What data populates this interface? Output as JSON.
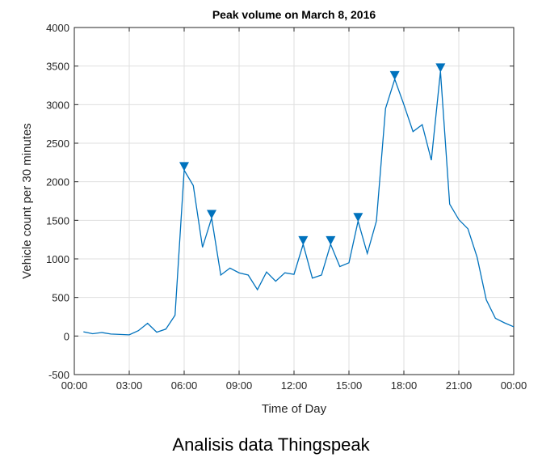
{
  "caption": "Analisis data Thingspeak",
  "chart_data": {
    "type": "line",
    "title": "Peak volume on March 8, 2016",
    "xlabel": "Time of Day",
    "ylabel": "Vehicle count per 30 minutes",
    "xlim": [
      "00:00",
      "24:00"
    ],
    "ylim": [
      -500,
      4000
    ],
    "x_ticks": [
      "00:00",
      "03:00",
      "06:00",
      "09:00",
      "12:00",
      "15:00",
      "18:00",
      "21:00",
      "00:00"
    ],
    "y_ticks": [
      -500,
      0,
      500,
      1000,
      1500,
      2000,
      2500,
      3000,
      3500,
      4000
    ],
    "grid": true,
    "colors": {
      "line": "#0072bd",
      "marker": "#0072bd",
      "grid": "#dfdfdf",
      "axis": "#262626"
    },
    "series": [
      {
        "x": [
          "00:30",
          "01:00",
          "01:30",
          "02:00",
          "02:30",
          "03:00",
          "03:30",
          "04:00",
          "04:30",
          "05:00",
          "05:30",
          "06:00",
          "06:30",
          "07:00",
          "07:30",
          "08:00",
          "08:30",
          "09:00",
          "09:30",
          "10:00",
          "10:30",
          "11:00",
          "11:30",
          "12:00",
          "12:30",
          "13:00",
          "13:30",
          "14:00",
          "14:30",
          "15:00",
          "15:30",
          "16:00",
          "16:30",
          "17:00",
          "17:30",
          "18:00",
          "18:30",
          "19:00",
          "19:30",
          "20:00",
          "20:30",
          "21:00",
          "21:30",
          "22:00",
          "22:30",
          "23:00",
          "23:30",
          "24:00"
        ],
        "values": [
          55,
          30,
          45,
          25,
          20,
          15,
          70,
          165,
          50,
          90,
          270,
          2150,
          1950,
          1150,
          1530,
          790,
          880,
          820,
          790,
          600,
          830,
          710,
          820,
          800,
          1190,
          750,
          790,
          1190,
          900,
          950,
          1490,
          1070,
          1490,
          2950,
          3330,
          3000,
          2650,
          2740,
          2280,
          3430,
          1710,
          1510,
          1390,
          1020,
          470,
          230,
          170,
          120
        ]
      }
    ],
    "peaks": [
      {
        "x": "06:00",
        "value": 2150
      },
      {
        "x": "07:30",
        "value": 1530
      },
      {
        "x": "12:30",
        "value": 1190
      },
      {
        "x": "14:00",
        "value": 1190
      },
      {
        "x": "15:30",
        "value": 1490
      },
      {
        "x": "17:30",
        "value": 3330
      },
      {
        "x": "20:00",
        "value": 3430
      }
    ]
  }
}
